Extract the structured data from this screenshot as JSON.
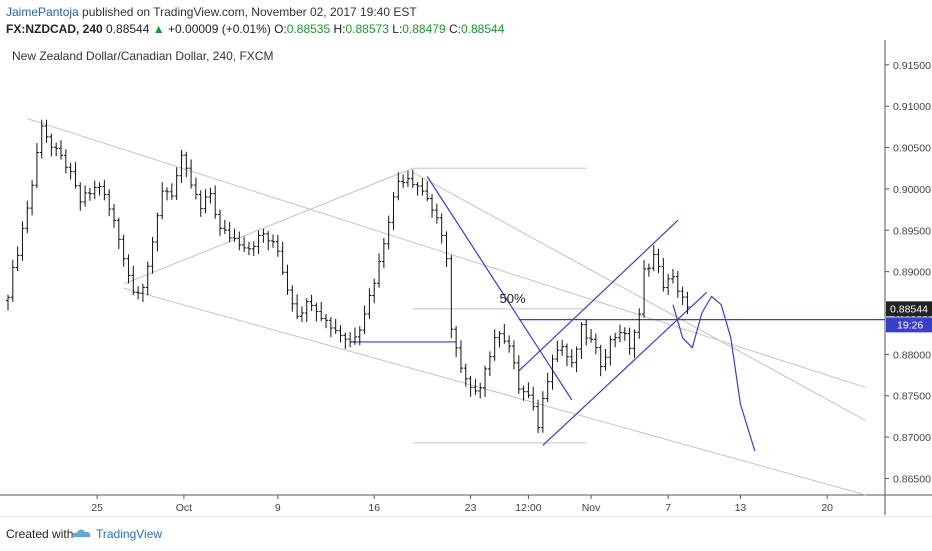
{
  "header": {
    "author": "JaimePantoja",
    "published": " published on TradingView.com, November 02, 2017 19:40 EST",
    "symbol": "FX:NZDCAD, 240",
    "last": "0.88544",
    "arrow": "▲",
    "change": "+0.00009 (+0.01%)",
    "o_label": "O:",
    "o_value": "0.88535",
    "h_label": "H:",
    "h_value": "0.88573",
    "l_label": "L:",
    "l_value": "0.88479",
    "c_label": "C:",
    "c_value": "0.88544"
  },
  "footer": {
    "created_with": "Created with",
    "brand": "TradingView"
  },
  "colors": {
    "bars": "#111111",
    "trend_blue": "#3a3fc8",
    "channel_gray": "#c4c4c4",
    "price_tag": "#222222",
    "time_tag": "#3a3fc8",
    "change_green": "#1a9a2a"
  },
  "chart_data": {
    "type": "ohlc",
    "title": "New Zealand Dollar/Canadian Dollar, 240, FXCM",
    "ylim": [
      0.863,
      0.918
    ],
    "y_ticks": [
      "0.86500",
      "0.87000",
      "0.87500",
      "0.88000",
      "0.88500",
      "0.89000",
      "0.89500",
      "0.90000",
      "0.90500",
      "0.91000",
      "0.91500"
    ],
    "x_ticks": [
      "25",
      "Oct",
      "9",
      "16",
      "23",
      "12:00",
      "Nov",
      "7",
      "13",
      "20"
    ],
    "last_price_label": "0.88544",
    "countdown_label": "19:26",
    "annotation": "50%",
    "anchors": [
      {
        "t": 0,
        "p": 0.8875
      },
      {
        "t": 2,
        "p": 0.8925
      },
      {
        "t": 5,
        "p": 0.9005
      },
      {
        "t": 7,
        "p": 0.908
      },
      {
        "t": 9,
        "p": 0.905
      },
      {
        "t": 12,
        "p": 0.903
      },
      {
        "t": 15,
        "p": 0.8985
      },
      {
        "t": 19,
        "p": 0.9005
      },
      {
        "t": 22,
        "p": 0.896
      },
      {
        "t": 24,
        "p": 0.892
      },
      {
        "t": 26,
        "p": 0.8875
      },
      {
        "t": 28,
        "p": 0.8885
      },
      {
        "t": 30,
        "p": 0.893
      },
      {
        "t": 32,
        "p": 0.9
      },
      {
        "t": 34,
        "p": 0.8995
      },
      {
        "t": 36,
        "p": 0.9035
      },
      {
        "t": 38,
        "p": 0.9005
      },
      {
        "t": 40,
        "p": 0.8975
      },
      {
        "t": 42,
        "p": 0.8995
      },
      {
        "t": 44,
        "p": 0.895
      },
      {
        "t": 47,
        "p": 0.894
      },
      {
        "t": 50,
        "p": 0.893
      },
      {
        "t": 53,
        "p": 0.8945
      },
      {
        "t": 56,
        "p": 0.8925
      },
      {
        "t": 58,
        "p": 0.888
      },
      {
        "t": 60,
        "p": 0.885
      },
      {
        "t": 63,
        "p": 0.8865
      },
      {
        "t": 66,
        "p": 0.884
      },
      {
        "t": 69,
        "p": 0.8825
      },
      {
        "t": 71,
        "p": 0.8815
      },
      {
        "t": 73,
        "p": 0.8835
      },
      {
        "t": 75,
        "p": 0.887
      },
      {
        "t": 77,
        "p": 0.891
      },
      {
        "t": 79,
        "p": 0.8965
      },
      {
        "t": 81,
        "p": 0.901
      },
      {
        "t": 83,
        "p": 0.9015
      },
      {
        "t": 85,
        "p": 0.9005
      },
      {
        "t": 87,
        "p": 0.899
      },
      {
        "t": 89,
        "p": 0.896
      },
      {
        "t": 91,
        "p": 0.892
      },
      {
        "t": 92,
        "p": 0.883
      },
      {
        "t": 94,
        "p": 0.878
      },
      {
        "t": 96,
        "p": 0.8755
      },
      {
        "t": 98,
        "p": 0.8765
      },
      {
        "t": 100,
        "p": 0.88
      },
      {
        "t": 102,
        "p": 0.883
      },
      {
        "t": 104,
        "p": 0.881
      },
      {
        "t": 106,
        "p": 0.876
      },
      {
        "t": 108,
        "p": 0.8748
      },
      {
        "t": 110,
        "p": 0.8715
      },
      {
        "t": 111,
        "p": 0.8745
      },
      {
        "t": 113,
        "p": 0.88
      },
      {
        "t": 115,
        "p": 0.881
      },
      {
        "t": 117,
        "p": 0.8785
      },
      {
        "t": 119,
        "p": 0.883
      },
      {
        "t": 121,
        "p": 0.8815
      },
      {
        "t": 123,
        "p": 0.879
      },
      {
        "t": 125,
        "p": 0.8815
      },
      {
        "t": 127,
        "p": 0.883
      },
      {
        "t": 129,
        "p": 0.881
      },
      {
        "t": 131,
        "p": 0.8845
      },
      {
        "t": 132,
        "p": 0.89
      },
      {
        "t": 134,
        "p": 0.892
      },
      {
        "t": 136,
        "p": 0.8885
      },
      {
        "t": 138,
        "p": 0.889
      },
      {
        "t": 140,
        "p": 0.887
      },
      {
        "t": 141,
        "p": 0.8854
      }
    ],
    "drawings": [
      {
        "kind": "channel-upper",
        "from": {
          "t": 4,
          "p": 0.9085
        },
        "to": {
          "t": 178,
          "p": 0.876
        }
      },
      {
        "kind": "channel-lower",
        "from": {
          "t": 24,
          "p": 0.888
        },
        "to": {
          "t": 178,
          "p": 0.863
        }
      },
      {
        "kind": "channel-mid",
        "from": {
          "t": 84,
          "p": 0.902
        },
        "to": {
          "t": 178,
          "p": 0.872
        }
      },
      {
        "kind": "rising-line",
        "from": {
          "t": 24,
          "p": 0.8885
        },
        "to": {
          "t": 84,
          "p": 0.9025
        }
      },
      {
        "kind": "fib-level-0",
        "from": {
          "t": 84,
          "p": 0.9025
        },
        "to": {
          "t": 120,
          "p": 0.9025
        }
      },
      {
        "kind": "fib-level-50",
        "from": {
          "t": 84,
          "p": 0.8855
        },
        "to": {
          "t": 120,
          "p": 0.8855
        }
      },
      {
        "kind": "fib-level-100",
        "from": {
          "t": 84,
          "p": 0.8693
        },
        "to": {
          "t": 120,
          "p": 0.8693
        }
      },
      {
        "kind": "support",
        "from": {
          "t": 71,
          "p": 0.8815
        },
        "to": {
          "t": 93,
          "p": 0.8815
        }
      },
      {
        "kind": "down-leg",
        "from": {
          "t": 87,
          "p": 0.9015
        },
        "to": {
          "t": 117,
          "p": 0.8745
        }
      },
      {
        "kind": "resistance",
        "from": {
          "t": 106,
          "p": 0.8842
        },
        "to": {
          "t": 182,
          "p": 0.8842
        }
      },
      {
        "kind": "wedge-lower",
        "from": {
          "t": 111,
          "p": 0.869
        },
        "to": {
          "t": 145,
          "p": 0.8875
        }
      },
      {
        "kind": "wedge-upper",
        "from": {
          "t": 106,
          "p": 0.878
        },
        "to": {
          "t": 139,
          "p": 0.8962
        }
      }
    ],
    "projection": [
      {
        "t": 138,
        "p": 0.886
      },
      {
        "t": 140,
        "p": 0.882
      },
      {
        "t": 142,
        "p": 0.8808
      },
      {
        "t": 144,
        "p": 0.885
      },
      {
        "t": 146,
        "p": 0.887
      },
      {
        "t": 148,
        "p": 0.886
      },
      {
        "t": 150,
        "p": 0.882
      },
      {
        "t": 152,
        "p": 0.874
      },
      {
        "t": 155,
        "p": 0.8683
      }
    ]
  }
}
